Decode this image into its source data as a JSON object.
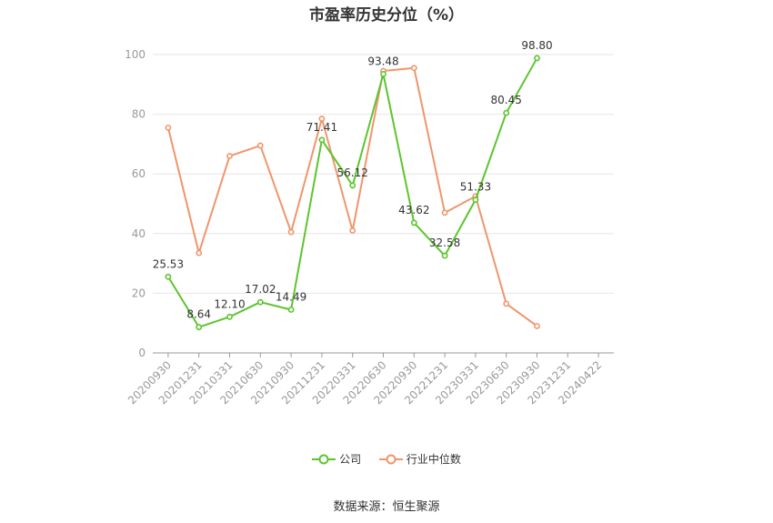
{
  "chart_data": {
    "type": "line",
    "title": "市盈率历史分位（%）",
    "x": [
      "20200930",
      "20201231",
      "20210331",
      "20210630",
      "20210930",
      "20211231",
      "20220331",
      "20220630",
      "20220930",
      "20221231",
      "20230331",
      "20230630",
      "20230930",
      "20231231",
      "20240422"
    ],
    "ylim": [
      0,
      100
    ],
    "yticks": [
      0,
      20,
      40,
      60,
      80,
      100
    ],
    "grid": true,
    "legend_position": "bottom",
    "series": [
      {
        "name": "公司",
        "color": "#5cc52e",
        "values": [
          25.53,
          8.64,
          12.1,
          17.02,
          14.49,
          71.41,
          56.12,
          93.48,
          43.62,
          32.58,
          51.33,
          80.45,
          98.8,
          null,
          null
        ],
        "labels": [
          "25.53",
          "8.64",
          "12.10",
          "17.02",
          "14.49",
          "71.41",
          "56.12",
          "93.48",
          "43.62",
          "32.58",
          "51.33",
          "80.45",
          "98.80",
          "",
          ""
        ]
      },
      {
        "name": "行业中位数",
        "color": "#f0956c",
        "values": [
          75.5,
          33.5,
          66,
          69.5,
          40.5,
          78.5,
          41,
          94.5,
          95.5,
          47,
          52.5,
          16.5,
          9,
          null,
          null
        ]
      }
    ]
  },
  "source": "数据来源：恒生聚源"
}
